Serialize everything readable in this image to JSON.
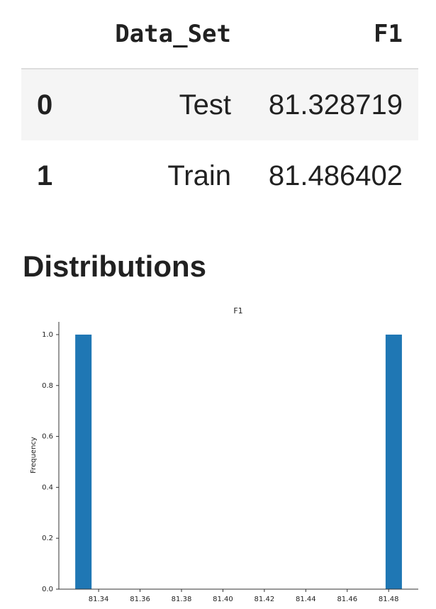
{
  "table": {
    "columns": [
      "",
      "Data_Set",
      "F1"
    ],
    "rows": [
      {
        "index": "0",
        "data_set": "Test",
        "f1": "81.328719"
      },
      {
        "index": "1",
        "data_set": "Train",
        "f1": "81.486402"
      }
    ]
  },
  "section": {
    "title": "Distributions"
  },
  "chart_data": {
    "type": "bar",
    "title": "F1",
    "xlabel": "",
    "ylabel": "Frequency",
    "bins": [
      {
        "x0": 81.328719,
        "x1": 81.336603,
        "count": 1
      },
      {
        "x0": 81.478518,
        "x1": 81.486402,
        "count": 1
      }
    ],
    "xlim": [
      81.3208,
      81.4943
    ],
    "ylim": [
      0,
      1.05
    ],
    "xticks": [
      "81.34",
      "81.36",
      "81.38",
      "81.40",
      "81.42",
      "81.44",
      "81.46",
      "81.48"
    ],
    "yticks": [
      "0.0",
      "0.2",
      "0.4",
      "0.6",
      "0.8",
      "1.0"
    ],
    "bar_color": "#1f77b4",
    "grid": false
  }
}
